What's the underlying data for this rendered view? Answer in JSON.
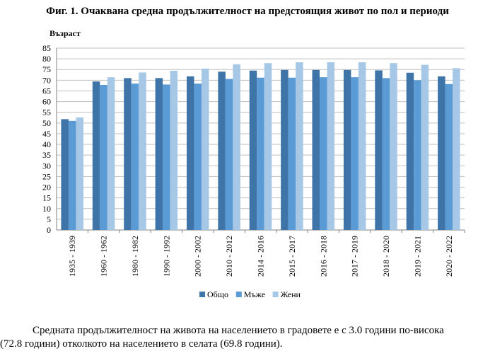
{
  "title": "Фиг. 1. Очаквана средна продължителност на предстоящия живот по пол и периоди",
  "chart_data": {
    "type": "bar",
    "ylabel": "Възраст",
    "ylim": [
      0,
      85
    ],
    "yticks": [
      0,
      5,
      10,
      15,
      20,
      25,
      30,
      35,
      40,
      45,
      50,
      55,
      60,
      65,
      70,
      75,
      80,
      85
    ],
    "grid": true,
    "legend_position": "bottom",
    "categories": [
      "1935 - 1939",
      "1960 - 1962",
      "1980 - 1982",
      "1990 - 1992",
      "2000 - 2002",
      "2010 - 2012",
      "2014 - 2016",
      "2015 - 2017",
      "2016 - 2018",
      "2017 - 2019",
      "2018 - 2020",
      "2019 - 2021",
      "2020 - 2022"
    ],
    "series": [
      {
        "name": "Общо",
        "color": "#3f74a8",
        "values": [
          51.8,
          69.4,
          71.0,
          71.0,
          71.8,
          74.0,
          74.5,
          74.8,
          74.8,
          74.8,
          74.6,
          73.5,
          71.8
        ]
      },
      {
        "name": "Мъже",
        "color": "#5b9bd5",
        "values": [
          51.0,
          67.8,
          68.4,
          68.0,
          68.4,
          70.6,
          71.2,
          71.2,
          71.4,
          71.4,
          71.0,
          70.0,
          68.2
        ]
      },
      {
        "name": "Жени",
        "color": "#a7c7e7",
        "values": [
          52.6,
          71.4,
          73.6,
          74.4,
          75.4,
          77.4,
          78.0,
          78.4,
          78.4,
          78.4,
          78.0,
          77.2,
          75.6
        ]
      }
    ]
  },
  "paragraph": {
    "line1": "Средната продължителност на живота на населението в градовете е с 3.0 години по-висока",
    "line2": "(72.8 години) отколкото на населението в селата (69.8 години)."
  }
}
